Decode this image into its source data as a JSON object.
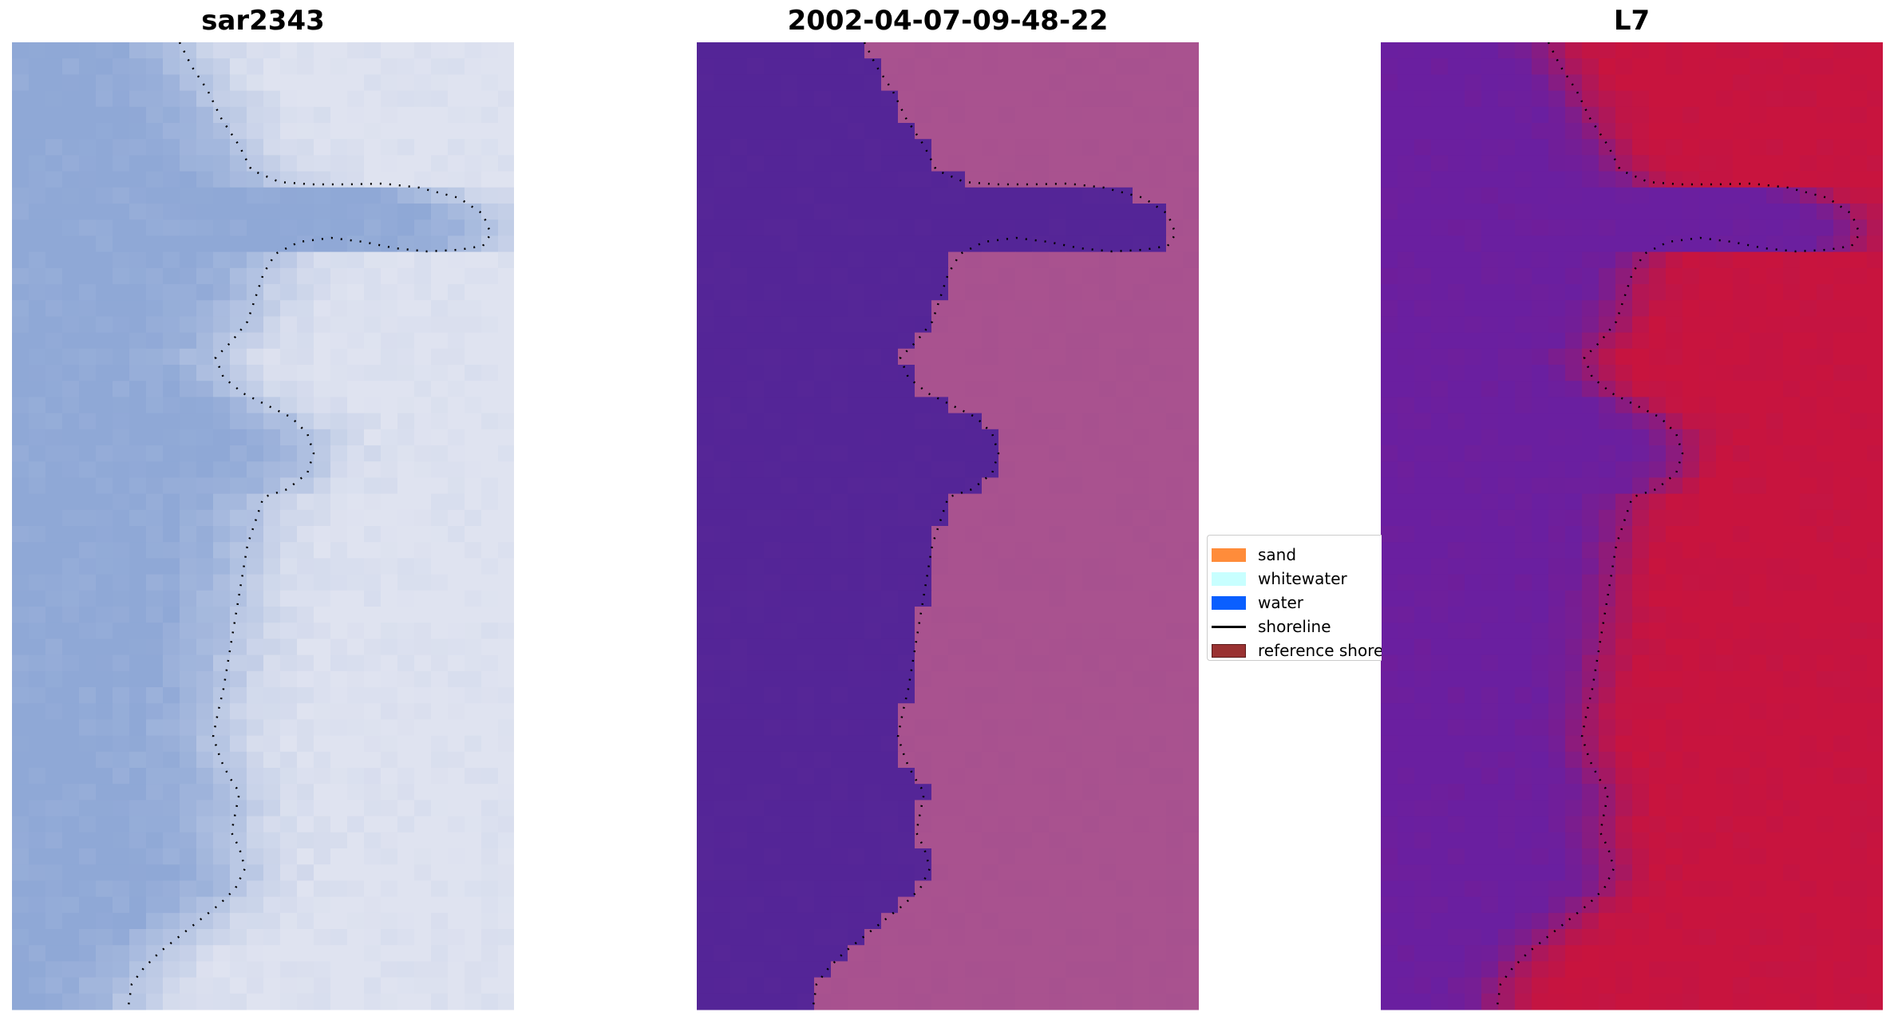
{
  "figure": {
    "panels": [
      {
        "title": "sar2343",
        "image": "rgb-satellite-image"
      },
      {
        "title": "2002-04-07-09-48-22",
        "image": "classified-image"
      },
      {
        "title": "L7",
        "image": "mndwi-image"
      }
    ]
  },
  "legend": {
    "items": [
      {
        "label": "sand",
        "color": "#ff8c3a",
        "kind": "patch"
      },
      {
        "label": "whitewater",
        "color": "#c8ffff",
        "kind": "patch"
      },
      {
        "label": "water",
        "color": "#0a5fff",
        "kind": "patch"
      },
      {
        "label": "shoreline",
        "color": "#000000",
        "kind": "line"
      },
      {
        "label": "reference shoreline",
        "color": "#9a3232",
        "kind": "patch"
      }
    ]
  },
  "colors": {
    "water_class": "#542597",
    "land_class": "#a9528f",
    "mndwi_water": "#6a1fa0",
    "mndwi_land": "#c8143e",
    "rgb_water": "#8fa8d6",
    "rgb_land": "#dfe3f0"
  }
}
